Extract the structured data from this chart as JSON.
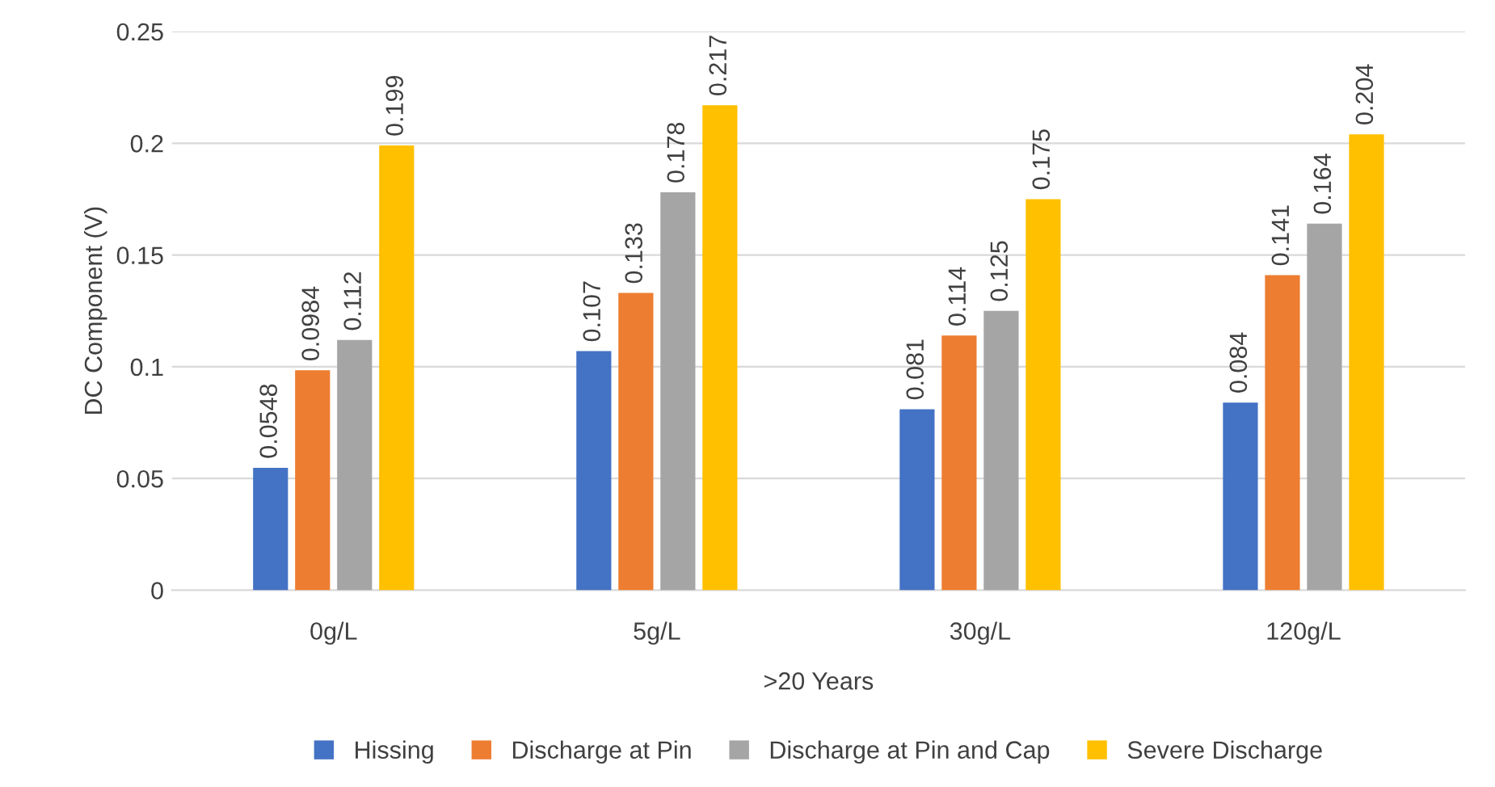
{
  "chart_data": {
    "type": "bar",
    "categories": [
      "0g/L",
      "5g/L",
      "30g/L",
      "120g/L"
    ],
    "xlabel": ">20 Years",
    "ylabel": "DC Component (V)",
    "series": [
      {
        "name": "Hissing",
        "color": "#4472c4",
        "values": [
          0.0548,
          0.107,
          0.081,
          0.084
        ]
      },
      {
        "name": "Discharge at Pin",
        "color": "#ed7d31",
        "values": [
          0.0984,
          0.133,
          0.114,
          0.141
        ]
      },
      {
        "name": "Discharge at Pin and Cap",
        "color": "#a5a5a5",
        "values": [
          0.112,
          0.178,
          0.125,
          0.164
        ]
      },
      {
        "name": "Severe Discharge",
        "color": "#ffc000",
        "values": [
          0.199,
          0.217,
          0.175,
          0.204
        ]
      }
    ],
    "ylim": [
      0,
      0.25
    ],
    "yticks": [
      0,
      0.05,
      0.1,
      0.15,
      0.2,
      0.25
    ],
    "grid": "y",
    "legend": "bottom",
    "data_labels": true
  }
}
